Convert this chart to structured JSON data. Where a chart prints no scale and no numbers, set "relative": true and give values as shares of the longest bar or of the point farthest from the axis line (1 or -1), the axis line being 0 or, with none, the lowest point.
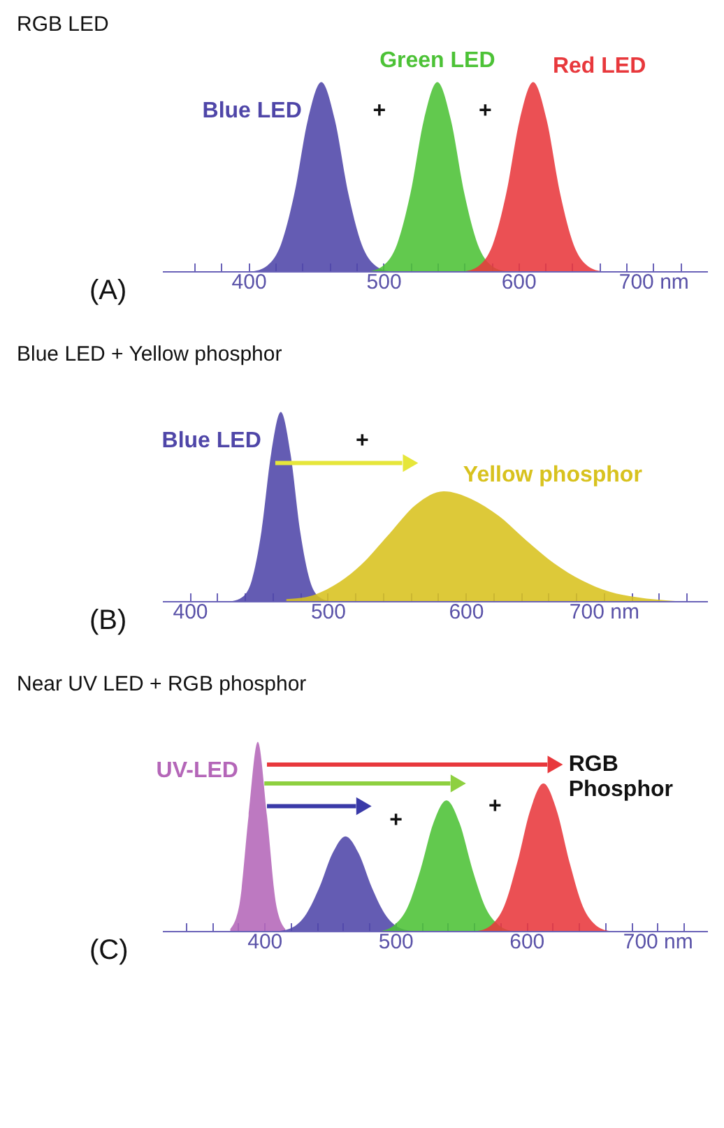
{
  "chart_data": [
    {
      "type": "area",
      "title": "RGB LED",
      "relative": true,
      "xlim": [
        336,
        740
      ],
      "xticks": [
        {
          "value": 360,
          "label": null
        },
        {
          "value": 380,
          "label": null
        },
        400,
        {
          "value": 420,
          "label": null
        },
        {
          "value": 440,
          "label": null
        },
        {
          "value": 460,
          "label": null
        },
        {
          "value": 480,
          "label": null
        },
        500,
        {
          "value": 520,
          "label": null
        },
        {
          "value": 540,
          "label": null
        },
        {
          "value": 560,
          "label": null
        },
        {
          "value": 580,
          "label": null
        },
        600,
        {
          "value": 620,
          "label": null
        },
        {
          "value": 640,
          "label": null
        },
        {
          "value": 660,
          "label": null
        },
        {
          "value": 680,
          "label": null
        },
        {
          "value": 700,
          "label": "700 nm"
        },
        {
          "value": 720,
          "label": null
        }
      ],
      "series": [
        {
          "name": "Blue LED",
          "color": "#4f46a8",
          "x": [
            404,
            414,
            424,
            434,
            444,
            454,
            464,
            474,
            484,
            494,
            504
          ],
          "values": [
            0,
            0.03,
            0.14,
            0.41,
            0.8,
            1,
            0.8,
            0.41,
            0.14,
            0.03,
            0
          ]
        },
        {
          "name": "Green LED",
          "color": "#4cc236",
          "x": [
            490,
            500,
            510,
            520,
            530,
            540,
            550,
            560,
            570,
            580,
            590
          ],
          "values": [
            0,
            0.03,
            0.14,
            0.41,
            0.8,
            1,
            0.8,
            0.41,
            0.14,
            0.03,
            0
          ]
        },
        {
          "name": "Red LED",
          "color": "#e8383c",
          "x": [
            561,
            571,
            581,
            591,
            601,
            611,
            621,
            631,
            641,
            651,
            661
          ],
          "values": [
            0,
            0.03,
            0.14,
            0.41,
            0.8,
            1,
            0.8,
            0.41,
            0.14,
            0.03,
            0
          ]
        }
      ],
      "annotations": [
        "+",
        "+",
        "(A)"
      ]
    },
    {
      "type": "area",
      "title": "Blue LED + Yellow phosphor",
      "relative": true,
      "xlim": [
        380,
        775
      ],
      "xticks": [
        400,
        {
          "value": 420,
          "label": null
        },
        {
          "value": 440,
          "label": null
        },
        {
          "value": 460,
          "label": null
        },
        {
          "value": 480,
          "label": null
        },
        500,
        {
          "value": 520,
          "label": null
        },
        {
          "value": 540,
          "label": null
        },
        {
          "value": 560,
          "label": null
        },
        {
          "value": 580,
          "label": null
        },
        600,
        {
          "value": 620,
          "label": null
        },
        {
          "value": 640,
          "label": null
        },
        {
          "value": 660,
          "label": null
        },
        {
          "value": 680,
          "label": null
        },
        {
          "value": 700,
          "label": "700 nm"
        },
        {
          "value": 720,
          "label": null
        },
        {
          "value": 740,
          "label": null
        },
        {
          "value": 760,
          "label": null
        }
      ],
      "series": [
        {
          "name": "Blue LED",
          "color": "#4f46a8",
          "x": [
            431,
            438,
            445,
            452,
            459,
            466,
            473,
            480,
            487,
            494,
            501
          ],
          "values": [
            0,
            0.02,
            0.11,
            0.37,
            0.78,
            1,
            0.78,
            0.37,
            0.11,
            0.02,
            0
          ]
        },
        {
          "name": "Yellow phosphor",
          "color": "#d8c21e",
          "x": [
            470,
            484,
            504,
            524,
            544,
            564,
            584,
            604,
            624,
            644,
            664,
            684,
            704,
            724,
            752
          ],
          "values": [
            0.01,
            0.02,
            0.08,
            0.19,
            0.35,
            0.51,
            0.58,
            0.54,
            0.45,
            0.32,
            0.2,
            0.11,
            0.05,
            0.02,
            0
          ]
        }
      ],
      "annotations": [
        "+",
        "(B)"
      ]
    },
    {
      "type": "area",
      "title": "Near UV LED + RGB phosphor",
      "relative": true,
      "xlim": [
        322,
        738
      ],
      "xticks": [
        {
          "value": 340,
          "label": null
        },
        {
          "value": 360,
          "label": null
        },
        {
          "value": 380,
          "label": null
        },
        400,
        {
          "value": 420,
          "label": null
        },
        {
          "value": 440,
          "label": null
        },
        {
          "value": 460,
          "label": null
        },
        {
          "value": 480,
          "label": null
        },
        500,
        {
          "value": 520,
          "label": null
        },
        {
          "value": 540,
          "label": null
        },
        {
          "value": 560,
          "label": null
        },
        {
          "value": 580,
          "label": null
        },
        600,
        {
          "value": 620,
          "label": null
        },
        {
          "value": 640,
          "label": null
        },
        {
          "value": 660,
          "label": null
        },
        {
          "value": 680,
          "label": null
        },
        {
          "value": 700,
          "label": "700 nm"
        },
        {
          "value": 720,
          "label": null
        }
      ],
      "series": [
        {
          "name": "UV-LED",
          "color": "#b466b8",
          "x": [
            374,
            381,
            388,
            395,
            402,
            409,
            416
          ],
          "values": [
            0.01,
            0.14,
            0.61,
            1,
            0.61,
            0.14,
            0.01
          ]
        },
        {
          "color": "#4f46a8",
          "x": [
            412,
            422,
            432,
            442,
            452,
            462,
            472,
            482,
            492,
            502,
            512
          ],
          "values": [
            0,
            0.02,
            0.09,
            0.23,
            0.41,
            0.5,
            0.41,
            0.23,
            0.09,
            0.02,
            0
          ]
        },
        {
          "color": "#4cc236",
          "x": [
            489,
            499,
            509,
            519,
            529,
            539,
            549,
            559,
            569,
            579,
            589
          ],
          "values": [
            0,
            0.03,
            0.12,
            0.32,
            0.57,
            0.69,
            0.57,
            0.32,
            0.12,
            0.03,
            0
          ]
        },
        {
          "color": "#e8383c",
          "x": [
            563,
            573,
            583,
            593,
            603,
            613,
            623,
            633,
            643,
            653,
            663
          ],
          "values": [
            0,
            0.03,
            0.13,
            0.36,
            0.64,
            0.78,
            0.64,
            0.36,
            0.13,
            0.03,
            0
          ]
        }
      ],
      "annotations": [
        "+",
        "+",
        "(C)",
        {
          "text": "RGB Phosphor",
          "x": 613,
          "y": 0.78
        }
      ]
    }
  ]
}
